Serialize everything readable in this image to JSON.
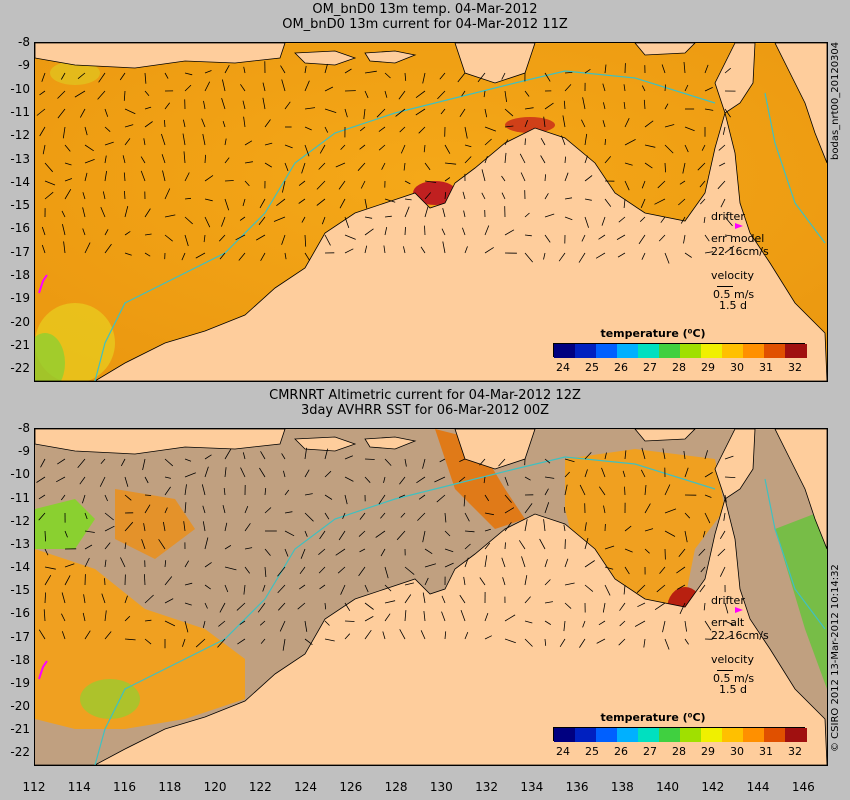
{
  "top_panel": {
    "title_line1": "OM_bnD0 13m temp. 04-Mar-2012",
    "title_line2": "OM_bnD0 13m current for 04-Mar-2012 11Z",
    "drifter_label": "drifter",
    "err_label": "err model",
    "err_value": "22 16cm/s",
    "velocity_label": "velocity",
    "velocity_value": "0.5 m/s",
    "velocity_days": "1.5 d",
    "colorbar_title": "temperature (⁰C)"
  },
  "bottom_panel": {
    "title_line1": "CMRNRT Altimetric current for 04-Mar-2012 12Z",
    "title_line2": "3day AVHRR SST for 06-Mar-2012 00Z",
    "drifter_label": "drifter",
    "err_label": "err alt",
    "err_value": "22 16cm/s",
    "velocity_label": "velocity",
    "velocity_value": "0.5 m/s",
    "velocity_days": "1.5 d",
    "colorbar_title": "temperature (⁰C)"
  },
  "side_text_top": "bodas_nrt00_20120304",
  "side_text_bottom": "© CSIRO 2012   13-Mar-2012 10:14:32",
  "y_ticks": [
    "-8",
    "-9",
    "-10",
    "-11",
    "-12",
    "-13",
    "-14",
    "-15",
    "-16",
    "-17",
    "-18",
    "-19",
    "-20",
    "-21",
    "-22"
  ],
  "x_ticks": [
    "112",
    "114",
    "116",
    "118",
    "120",
    "122",
    "124",
    "126",
    "128",
    "130",
    "132",
    "134",
    "136",
    "138",
    "140",
    "142",
    "144",
    "146"
  ],
  "colorbar_ticks": [
    "24",
    "25",
    "26",
    "27",
    "28",
    "29",
    "30",
    "31",
    "32"
  ],
  "colorbar_colors": [
    "#000080",
    "#0020c0",
    "#0060ff",
    "#00b0ff",
    "#00e0c0",
    "#40d040",
    "#a0e000",
    "#f0f000",
    "#ffc000",
    "#ff9000",
    "#e05000",
    "#a01010"
  ],
  "colors": {
    "land": "#fecd9c",
    "sea_warm": "#f2a21a",
    "sea_hot": "#c2281a",
    "no_data": "#c0a080",
    "isobath": "#40c0c0",
    "drifter": "#ff00ff"
  },
  "map_extent": {
    "lon": [
      112,
      147
    ],
    "lat": [
      -8,
      -22.5
    ]
  }
}
